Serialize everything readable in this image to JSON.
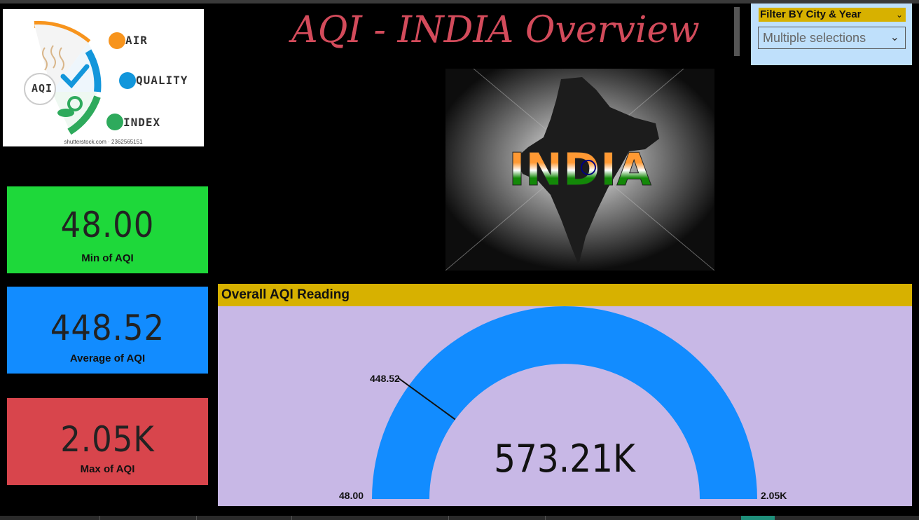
{
  "dashboard": {
    "title": "AQI - INDIA Overview"
  },
  "logo": {
    "words": [
      "AIR",
      "QUALITY",
      "INDEX"
    ],
    "badge": "AQI",
    "credit": "shutterstock.com · 2362565151",
    "colors": {
      "orange": "#f7941d",
      "blue": "#1296db",
      "green": "#2eaa5c"
    }
  },
  "filter": {
    "title": "Filter BY City & Year",
    "selection": "Multiple selections"
  },
  "banner_image": {
    "text": "INDIA"
  },
  "kpis": {
    "min": {
      "value": "48.00",
      "label": "Min of AQI",
      "color": "#1ed83a"
    },
    "avg": {
      "value": "448.52",
      "label": "Average of AQI",
      "color": "#128cff"
    },
    "max": {
      "value": "2.05K",
      "label": "Max of AQI",
      "color": "#d8454c"
    }
  },
  "gauge": {
    "title": "Overall AQI Reading",
    "value_label": "573.21K",
    "min_label": "48.00",
    "max_label": "2.05K",
    "target_label": "448.52",
    "min": 48,
    "max": 2050,
    "value": 573210,
    "target": 448.52,
    "fill_color": "#128cff"
  }
}
